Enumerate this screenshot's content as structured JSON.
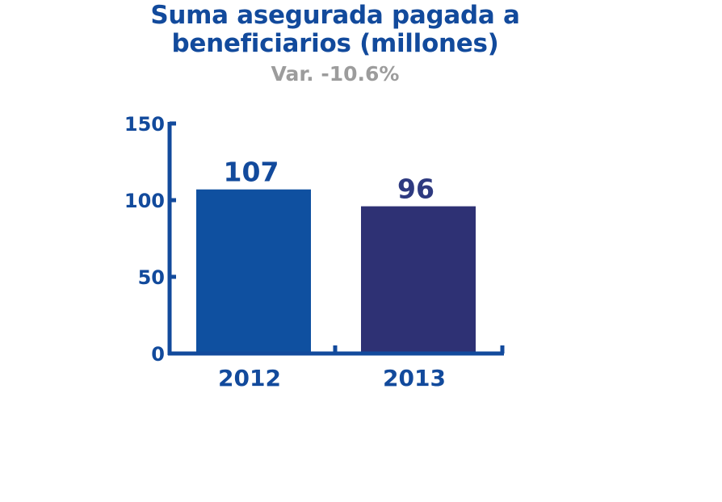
{
  "chart_data": {
    "type": "bar",
    "title_lines": [
      "Suma asegurada pagada a",
      "beneficiarios (millones)"
    ],
    "subtitle": "Var. -10.6%",
    "categories": [
      "2012",
      "2013"
    ],
    "values": [
      107,
      96
    ],
    "data_labels": [
      "107",
      "96"
    ],
    "yticks": [
      "0",
      "50",
      "100",
      "150"
    ],
    "ylim": [
      0,
      150
    ],
    "bar_colors": [
      "#0f50a0",
      "#2e3174"
    ],
    "axis_color": "#124a9c",
    "grid": false,
    "legend": "none"
  }
}
